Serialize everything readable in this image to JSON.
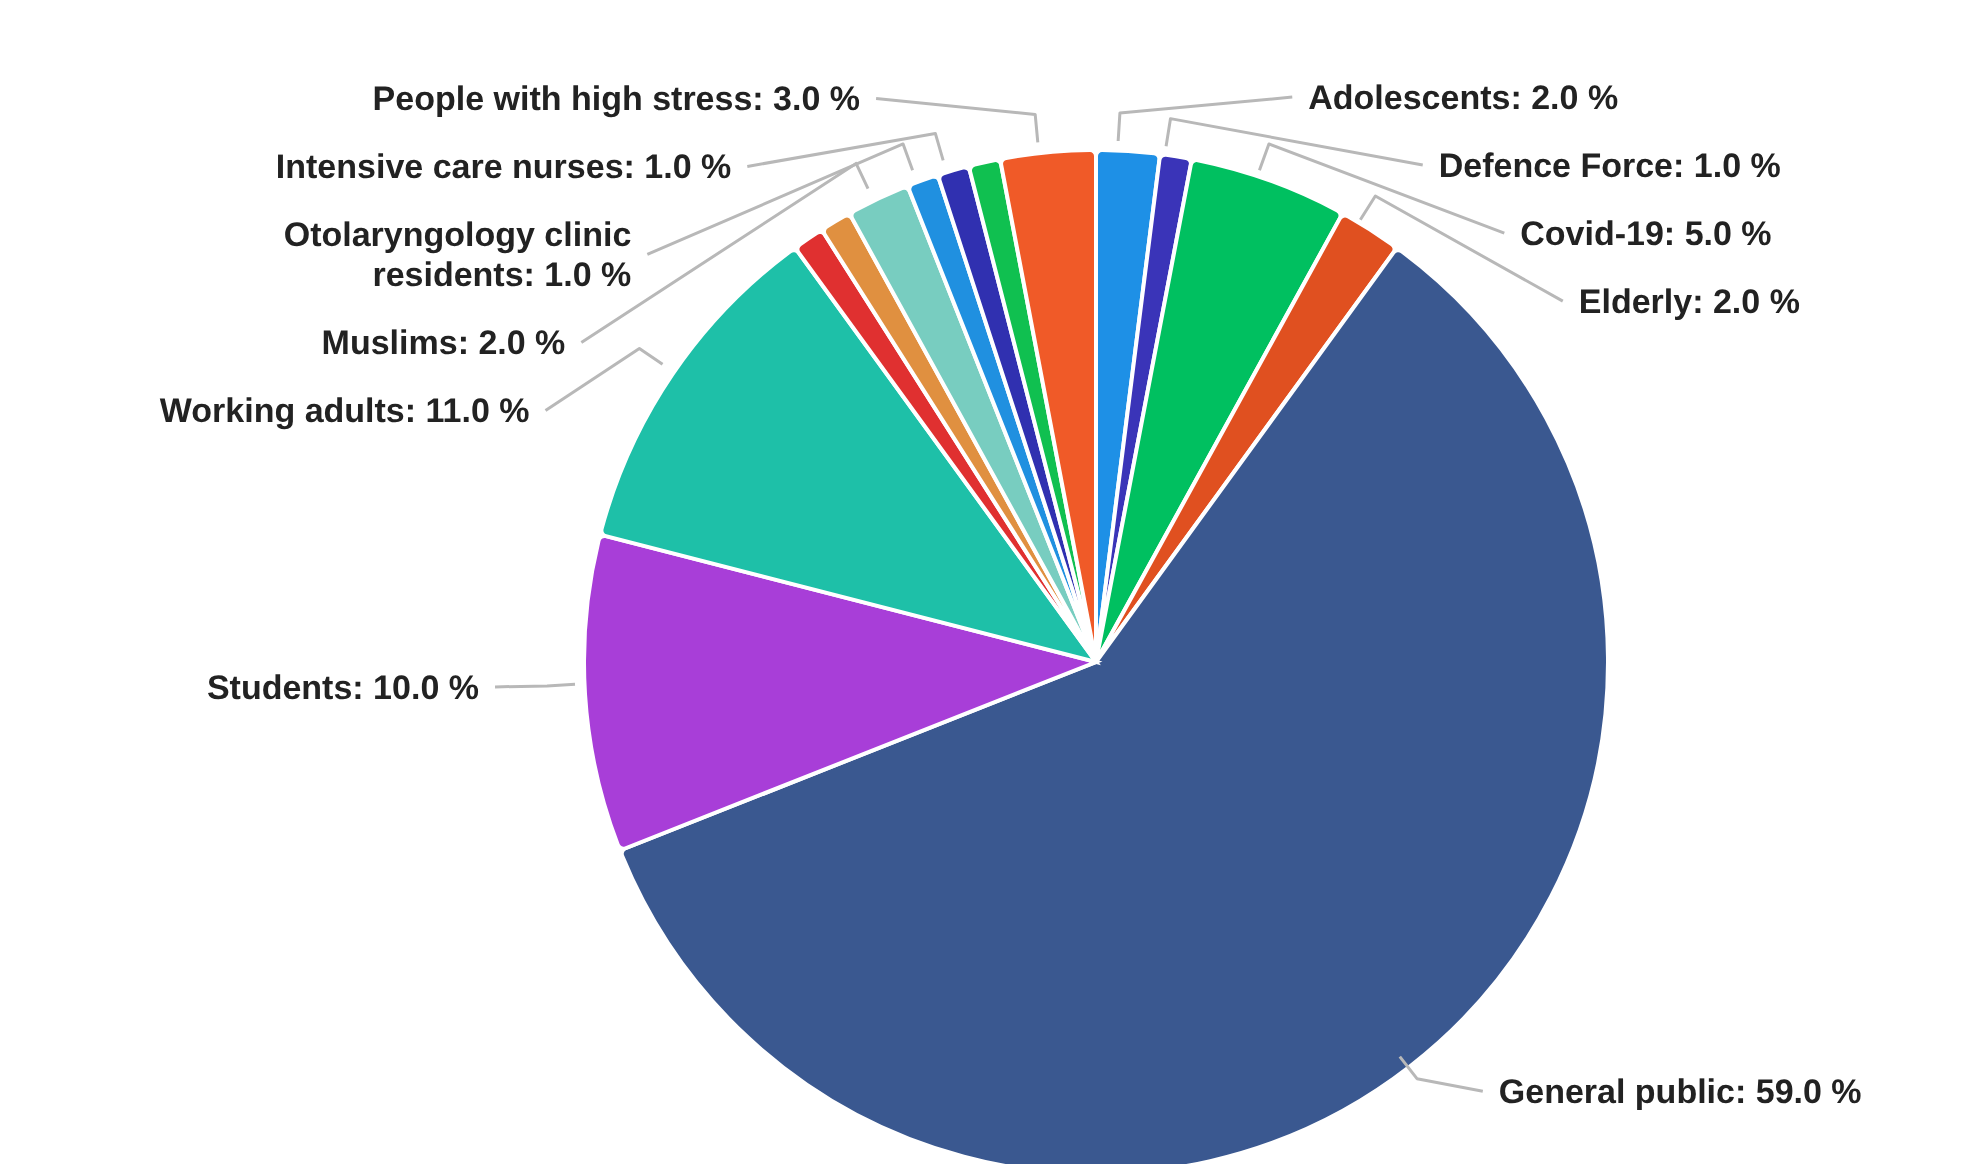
{
  "chart_data": {
    "type": "pie",
    "categories": [
      "Adolescents",
      "Defence Force",
      "Covid-19",
      "Elderly",
      "General public",
      "Students",
      "Working adults",
      null,
      null,
      "Muslims",
      "Otolaryngology clinic residents",
      "Intensive care nurses",
      null,
      "People with high stress"
    ],
    "values": [
      2,
      1,
      5,
      2,
      59,
      10,
      11,
      1,
      1,
      2,
      1,
      1,
      1,
      3
    ],
    "colors": [
      "#1e90e6",
      "#3a34b8",
      "#00c060",
      "#e05020",
      "#3a5890",
      "#a83ed8",
      "#1ec0a8",
      "#e03030",
      "#e09040",
      "#78cdc0",
      "#2090e0",
      "#3030b0",
      "#10c050",
      "#f05a28"
    ],
    "value_labels": [
      "2.0 %",
      "1.0 %",
      "5.0 %",
      "2.0 %",
      "59.0 %",
      "10.0 %",
      "11.0 %",
      null,
      null,
      "2.0 %",
      "1.0 %",
      "1.0 %",
      null,
      "3.0 %"
    ],
    "legend": false
  }
}
